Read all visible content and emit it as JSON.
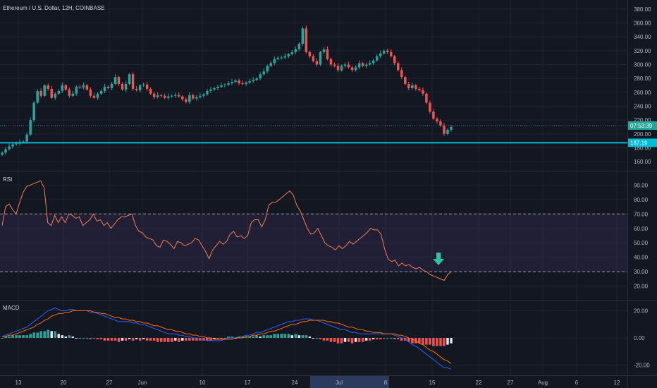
{
  "colors": {
    "background": "#131722",
    "grid": "#1e222d",
    "up": "#26a69a",
    "down": "#ef5350",
    "level_line": "#00bcd4",
    "rsi": "#f57c50",
    "rsi_band": "#7e57c2",
    "macd_line": "#2962ff",
    "signal_line": "#ff6d00",
    "hist_light": "#e0e3eb",
    "arrow": "#26c6a0"
  },
  "header": {
    "title": "Ethereum / U.S. Dollar, 12H, COINBASE"
  },
  "panes": {
    "rsi_label": "RSI",
    "macd_label": "MACD"
  },
  "price_badges": {
    "countdown": "07:53:39",
    "level": "187.19"
  },
  "x_axis": {
    "ticks": [
      "13",
      "20",
      "27",
      "Jun",
      "10",
      "17",
      "24",
      "Jul",
      "8",
      "15",
      "22",
      "27",
      "Aug",
      "6",
      "12"
    ],
    "highlighted": "Jul"
  },
  "chart_data": [
    {
      "type": "candlestick",
      "title": "Ethereum / U.S. Dollar, 12H, COINBASE",
      "ylim": [
        150,
        390
      ],
      "y_ticks": [
        160,
        180,
        200,
        220,
        240,
        260,
        280,
        300,
        320,
        340,
        360,
        380
      ],
      "y_tick_labels": [
        "160.00",
        "180.00",
        "200.00",
        "220.00",
        "240.00",
        "260.00",
        "280.00",
        "300.00",
        "320.00",
        "340.00",
        "360.00",
        "380.00"
      ],
      "levels": [
        187.19,
        212
      ],
      "closes": [
        173,
        178,
        182,
        185,
        186,
        188,
        189,
        199,
        220,
        245,
        262,
        255,
        270,
        265,
        252,
        258,
        262,
        270,
        264,
        255,
        258,
        268,
        267,
        270,
        264,
        255,
        252,
        258,
        262,
        268,
        266,
        272,
        282,
        272,
        264,
        272,
        286,
        265,
        263,
        270,
        271,
        265,
        258,
        253,
        256,
        255,
        252,
        254,
        255,
        256,
        254,
        250,
        246,
        256,
        251,
        253,
        255,
        257,
        262,
        264,
        266,
        268,
        270,
        271,
        273,
        275,
        277,
        273,
        272,
        274,
        276,
        278,
        280,
        286,
        290,
        298,
        302,
        308,
        310,
        310,
        312,
        315,
        318,
        322,
        330,
        352,
        318,
        312,
        305,
        300,
        318,
        322,
        308,
        300,
        298,
        292,
        298,
        300,
        296,
        292,
        296,
        302,
        298,
        300,
        302,
        306,
        312,
        316,
        320,
        318,
        312,
        302,
        292,
        282,
        272,
        266,
        270,
        265,
        263,
        258,
        245,
        232,
        222,
        218,
        212,
        200,
        206,
        210
      ],
      "x_tick_labels": [
        "13",
        "20",
        "27",
        "Jun",
        "10",
        "17",
        "24",
        "Jul",
        "8",
        "15",
        "22",
        "27",
        "Aug",
        "6",
        "12"
      ]
    },
    {
      "type": "line",
      "name": "RSI",
      "ylim": [
        12,
        98
      ],
      "y_ticks": [
        20,
        30,
        40,
        50,
        60,
        70,
        80,
        90
      ],
      "y_tick_labels": [
        "20.00",
        "30.00",
        "40.00",
        "50.00",
        "60.00",
        "70.00",
        "80.00",
        "90.00"
      ],
      "band": [
        30,
        70
      ],
      "values": [
        62,
        75,
        77,
        73,
        70,
        78,
        85,
        89,
        90,
        91,
        92,
        93,
        88,
        64,
        62,
        69,
        64,
        68,
        64,
        70,
        69,
        67,
        68,
        62,
        64,
        66,
        70,
        65,
        66,
        62,
        64,
        60,
        63,
        66,
        68,
        68,
        69,
        70,
        62,
        58,
        57,
        54,
        53,
        52,
        48,
        47,
        52,
        51,
        49,
        46,
        51,
        50,
        48,
        49,
        50,
        53,
        52,
        48,
        44,
        39,
        45,
        48,
        51,
        49,
        51,
        56,
        58,
        54,
        55,
        53,
        55,
        64,
        66,
        66,
        61,
        66,
        76,
        78,
        78,
        80,
        82,
        84,
        86,
        83,
        76,
        72,
        66,
        60,
        56,
        57,
        60,
        55,
        50,
        48,
        47,
        45,
        48,
        46,
        48,
        51,
        49,
        51,
        53,
        55,
        57,
        60,
        59,
        59,
        56,
        46,
        39,
        37,
        38,
        34,
        36,
        34,
        35,
        33,
        32,
        33,
        31,
        30,
        28,
        27,
        26,
        25,
        24,
        28,
        30
      ],
      "marker": "down-arrow"
    },
    {
      "type": "bar+line",
      "name": "MACD",
      "ylim": [
        -26,
        26
      ],
      "y_ticks": [
        -20,
        0,
        20
      ],
      "y_tick_labels": [
        "-20.00",
        "0.00",
        "20.00"
      ],
      "macd": [
        1,
        2,
        3,
        4,
        5,
        6,
        7,
        8,
        10,
        12,
        14,
        16,
        18,
        20,
        21,
        22,
        21,
        20,
        20,
        21,
        21,
        20,
        20,
        20,
        20,
        19,
        19,
        18,
        17,
        16,
        15,
        14,
        13,
        12,
        12,
        12,
        12,
        11,
        11,
        10,
        10,
        9,
        8,
        7,
        6,
        5,
        4,
        3,
        3,
        3,
        2,
        2,
        1,
        1,
        0,
        0,
        -1,
        -1,
        -2,
        -2,
        -2,
        -2,
        -2,
        -1,
        0,
        0,
        0,
        1,
        1,
        2,
        2,
        3,
        4,
        4,
        5,
        6,
        7,
        8,
        9,
        10,
        11,
        12,
        12,
        13,
        13,
        14,
        14,
        14,
        13,
        13,
        12,
        11,
        10,
        9,
        8,
        7,
        6,
        6,
        5,
        4,
        4,
        3,
        3,
        3,
        3,
        3,
        3,
        3,
        3,
        3,
        3,
        2,
        1,
        0,
        -1,
        -3,
        -5,
        -6,
        -8,
        -10,
        -12,
        -14,
        -16,
        -18,
        -20,
        -22,
        -22,
        -23
      ],
      "signal": [
        1,
        1,
        2,
        2,
        3,
        4,
        5,
        6,
        7,
        8,
        10,
        11,
        13,
        14,
        16,
        17,
        18,
        18,
        19,
        19,
        20,
        20,
        20,
        20,
        20,
        20,
        19,
        19,
        18,
        18,
        17,
        16,
        15,
        15,
        14,
        14,
        13,
        13,
        12,
        12,
        11,
        11,
        10,
        9,
        9,
        8,
        7,
        6,
        6,
        5,
        5,
        4,
        3,
        3,
        2,
        2,
        1,
        1,
        0,
        0,
        -1,
        -1,
        -1,
        -1,
        -1,
        -1,
        0,
        0,
        0,
        1,
        1,
        2,
        2,
        3,
        3,
        4,
        5,
        5,
        6,
        7,
        8,
        9,
        10,
        10,
        11,
        12,
        12,
        13,
        13,
        13,
        13,
        13,
        12,
        12,
        11,
        11,
        10,
        9,
        8,
        8,
        7,
        6,
        6,
        5,
        5,
        4,
        4,
        4,
        3,
        3,
        3,
        3,
        2,
        2,
        1,
        0,
        -1,
        -2,
        -4,
        -5,
        -7,
        -9,
        -10,
        -12,
        -14,
        -16,
        -17,
        -19
      ]
    }
  ]
}
